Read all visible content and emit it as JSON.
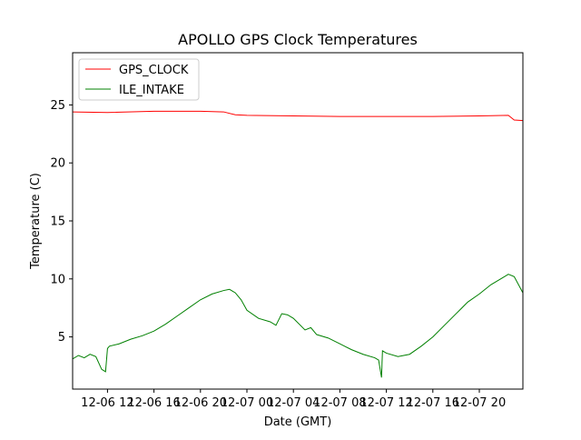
{
  "chart_data": {
    "type": "line",
    "title": "APOLLO GPS Clock Temperatures",
    "xlabel": "Date (GMT)",
    "ylabel": "Temperature (C)",
    "xlim": [
      "12-06 09:00",
      "12-07 23:45"
    ],
    "ylim": [
      0.5,
      29.5
    ],
    "x_ticks": [
      {
        "label": "12-06 12",
        "value": "12-06 12:00"
      },
      {
        "label": "12-06 16",
        "value": "12-06 16:00"
      },
      {
        "label": "12-06 20",
        "value": "12-06 20:00"
      },
      {
        "label": "12-07 00",
        "value": "12-07 00:00"
      },
      {
        "label": "12-07 04",
        "value": "12-07 04:00"
      },
      {
        "label": "12-07 08",
        "value": "12-07 08:00"
      },
      {
        "label": "12-07 12",
        "value": "12-07 12:00"
      },
      {
        "label": "12-07 16",
        "value": "12-07 16:00"
      },
      {
        "label": "12-07 20",
        "value": "12-07 20:00"
      }
    ],
    "y_ticks": [
      5,
      10,
      15,
      20,
      25
    ],
    "grid": false,
    "legend": "top-left",
    "series": [
      {
        "name": "GPS_CLOCK",
        "color": "#ff0000",
        "x": [
          "12-06 09:00",
          "12-06 12:00",
          "12-06 16:00",
          "12-06 20:00",
          "12-06 22:00",
          "12-06 23:00",
          "12-07 00:00",
          "12-07 04:00",
          "12-07 08:00",
          "12-07 12:00",
          "12-07 16:00",
          "12-07 20:00",
          "12-07 22:30",
          "12-07 23:00",
          "12-07 23:45"
        ],
        "y": [
          24.4,
          24.35,
          24.45,
          24.45,
          24.4,
          24.15,
          24.1,
          24.05,
          24.0,
          24.0,
          24.0,
          24.05,
          24.1,
          23.7,
          23.65
        ]
      },
      {
        "name": "ILE_INTAKE",
        "color": "#008000",
        "x": [
          "12-06 09:00",
          "12-06 09:30",
          "12-06 10:00",
          "12-06 10:30",
          "12-06 11:00",
          "12-06 11:30",
          "12-06 11:50",
          "12-06 12:00",
          "12-06 12:10",
          "12-06 13:00",
          "12-06 14:00",
          "12-06 15:00",
          "12-06 16:00",
          "12-06 17:00",
          "12-06 18:00",
          "12-06 19:00",
          "12-06 20:00",
          "12-06 21:00",
          "12-06 22:00",
          "12-06 22:30",
          "12-06 23:00",
          "12-06 23:30",
          "12-07 00:00",
          "12-07 01:00",
          "12-07 02:00",
          "12-07 02:30",
          "12-07 03:00",
          "12-07 03:30",
          "12-07 04:00",
          "12-07 05:00",
          "12-07 05:30",
          "12-07 06:00",
          "12-07 07:00",
          "12-07 08:00",
          "12-07 09:00",
          "12-07 10:00",
          "12-07 11:00",
          "12-07 11:20",
          "12-07 11:35",
          "12-07 11:40",
          "12-07 12:00",
          "12-07 13:00",
          "12-07 14:00",
          "12-07 15:00",
          "12-07 16:00",
          "12-07 17:00",
          "12-07 18:00",
          "12-07 19:00",
          "12-07 20:00",
          "12-07 21:00",
          "12-07 22:00",
          "12-07 22:30",
          "12-07 23:00",
          "12-07 23:45"
        ],
        "y": [
          3.1,
          3.4,
          3.2,
          3.5,
          3.3,
          2.2,
          2.0,
          4.0,
          4.2,
          4.4,
          4.8,
          5.1,
          5.5,
          6.1,
          6.8,
          7.5,
          8.2,
          8.7,
          9.0,
          9.1,
          8.8,
          8.2,
          7.3,
          6.6,
          6.3,
          6.0,
          7.0,
          6.9,
          6.6,
          5.6,
          5.8,
          5.2,
          4.9,
          4.4,
          3.9,
          3.5,
          3.2,
          3.0,
          1.5,
          3.8,
          3.6,
          3.3,
          3.5,
          4.2,
          5.0,
          6.0,
          7.0,
          8.0,
          8.7,
          9.5,
          10.1,
          10.4,
          10.2,
          8.8
        ]
      }
    ]
  }
}
